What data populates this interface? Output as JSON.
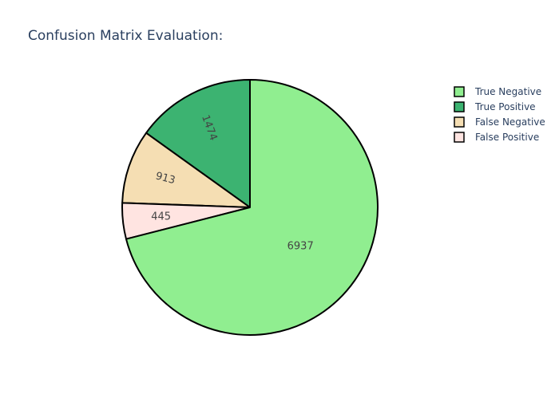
{
  "chart_data": {
    "type": "pie",
    "title": "Confusion Matrix Evaluation:",
    "labels": [
      "True Negative",
      "True Positive",
      "False Negative",
      "False Positive"
    ],
    "values": [
      6937,
      1474,
      913,
      445
    ],
    "colors": [
      "#90ee90",
      "#3cb371",
      "#f5deb3",
      "#ffe4e1"
    ],
    "direction": "counterclockwise",
    "start_angle_deg": 90,
    "sort": "descending",
    "legend_position": "top-right",
    "show_values_on_slices": true
  }
}
